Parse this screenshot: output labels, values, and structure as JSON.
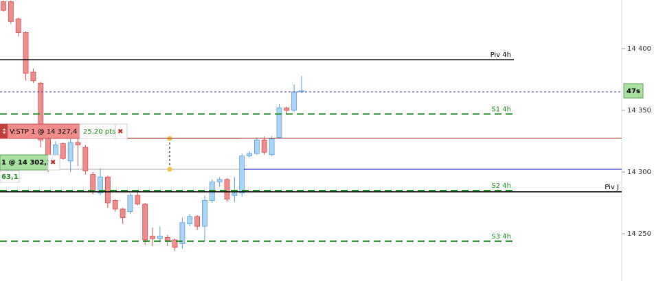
{
  "chart_data": {
    "type": "candlestick",
    "ylim": [
      14211.7,
      14439.4
    ],
    "yticks": [
      {
        "value": 14400,
        "label": "14 400"
      },
      {
        "value": 14350,
        "label": "14 350"
      },
      {
        "value": 14300,
        "label": "14 300"
      },
      {
        "value": 14250,
        "label": "14 250"
      }
    ],
    "up_color": "#a9d4f5",
    "down_color": "#f08c8c",
    "open": [
      14438,
      14438,
      14424,
      14413,
      14381,
      14372,
      14328,
      14312,
      14323,
      14309,
      14324,
      14320,
      14298,
      14283,
      14296,
      14277,
      14270,
      14268,
      14281,
      14274,
      14248,
      14246,
      14247,
      14245,
      14242,
      14258,
      14264,
      14256,
      14277,
      14292,
      14294,
      14281,
      14283,
      14313,
      14315,
      14326,
      14314,
      14328,
      14352,
      14350,
      14365
    ],
    "high": [
      14439,
      14439,
      14425,
      14414,
      14384,
      14373,
      14329,
      14325,
      14324,
      14327,
      14327,
      14322,
      14300,
      14303,
      14297,
      14278,
      14271,
      14283,
      14284,
      14275,
      14255,
      14256,
      14249,
      14246,
      14263,
      14266,
      14265,
      14281,
      14294,
      14296,
      14295,
      14296,
      14315,
      14317,
      14328,
      14329,
      14329,
      14355,
      14353,
      14371,
      14378
    ],
    "low": [
      14430,
      14420,
      14410,
      14374,
      14372,
      14320,
      14300,
      14310,
      14310,
      14300,
      14305,
      14298,
      14282,
      14281,
      14271,
      14268,
      14258,
      14266,
      14273,
      14241,
      14240,
      14244,
      14240,
      14236,
      14238,
      14256,
      14253,
      14244,
      14275,
      14288,
      14276,
      14276,
      14280,
      14312,
      14314,
      14314,
      14313,
      14327,
      14347,
      14349,
      14364
    ],
    "close": [
      14431,
      14422,
      14413,
      14380,
      14374,
      14326,
      14312,
      14322,
      14311,
      14324,
      14322,
      14301,
      14284,
      14296,
      14275,
      14270,
      14263,
      14281,
      14274,
      14245,
      14246,
      14248,
      14244,
      14239,
      14259,
      14264,
      14256,
      14277,
      14292,
      14294,
      14278,
      14283,
      14313,
      14315,
      14326,
      14316,
      14327,
      14352,
      14350,
      14365,
      14366
    ],
    "levels": [
      {
        "name": "Piv 4h",
        "value": 14391,
        "color": "#000000",
        "style": "solid"
      },
      {
        "value": 14365,
        "color": "#3c3caa",
        "style": "dotted"
      },
      {
        "name": "S1 4h",
        "value": 14347,
        "color": "#1e8c1e",
        "style": "dashed"
      },
      {
        "value": 14327.4,
        "color": "#a02020",
        "style": "solid"
      },
      {
        "value": 14302.2,
        "color": "#0000c8",
        "style": "solid"
      },
      {
        "name": "S2 4h",
        "value": 14285,
        "color": "#1e8c1e",
        "style": "dashed"
      },
      {
        "name": "Piv J",
        "value": 14284,
        "color": "#000000",
        "style": "solid"
      },
      {
        "name": "S3 4h",
        "value": 14244,
        "color": "#1e8c1e",
        "style": "dashed"
      }
    ],
    "orders": [
      {
        "label": "V:STP 1 @ 14 327,4",
        "pts": "25,20 pts"
      },
      {
        "label": "1 @ 14 302,2",
        "pts": "63,1"
      }
    ],
    "countdown": "47s"
  }
}
